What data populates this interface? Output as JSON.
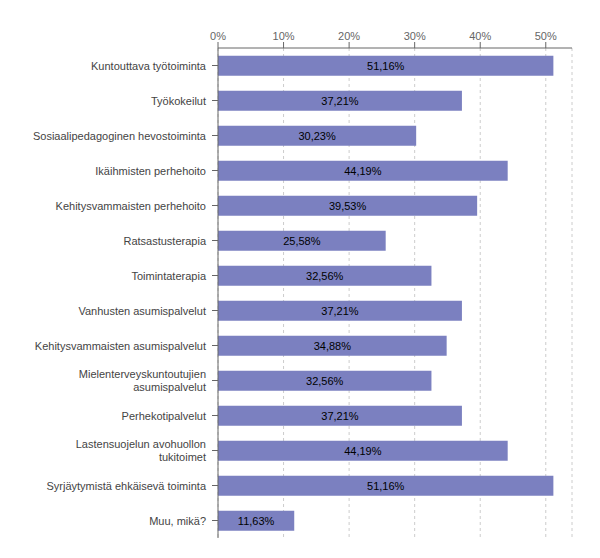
{
  "chart_data": {
    "type": "bar",
    "orientation": "horizontal",
    "categories": [
      "Kuntouttava työtoiminta",
      "Työkokeilut",
      "Sosiaalipedagoginen hevostoiminta",
      "Ikäihmisten perhehoito",
      "Kehitysvammaisten perhehoito",
      "Ratsastusterapia",
      "Toimintaterapia",
      "Vanhusten asumispalvelut",
      "Kehitysvammaisten asumispalvelut",
      "Mielenterveyskuntoutujien\nasumispalvelut",
      "Perhekotipalvelut",
      "Lastensuojelun avohuollon\ntukitoimet",
      "Syrjäytymistä ehkäisevä toiminta",
      "Muu, mikä?"
    ],
    "values": [
      51.16,
      37.21,
      30.23,
      44.19,
      39.53,
      25.58,
      32.56,
      37.21,
      34.88,
      32.56,
      37.21,
      44.19,
      51.16,
      11.63
    ],
    "value_labels": [
      "51,16%",
      "37,21%",
      "30,23%",
      "44,19%",
      "39,53%",
      "25,58%",
      "32,56%",
      "37,21%",
      "34,88%",
      "32,56%",
      "37,21%",
      "44,19%",
      "51,16%",
      "11,63%"
    ],
    "data_labels": true,
    "color": "#7b80c0",
    "xlim": [
      0,
      54
    ],
    "xticks": [
      {
        "value": 0,
        "label": "0%"
      },
      {
        "value": 10,
        "label": "10%"
      },
      {
        "value": 20,
        "label": "20%"
      },
      {
        "value": 30,
        "label": "30%"
      },
      {
        "value": 40,
        "label": "40%"
      },
      {
        "value": 50,
        "label": "50%"
      }
    ],
    "grid": true
  }
}
